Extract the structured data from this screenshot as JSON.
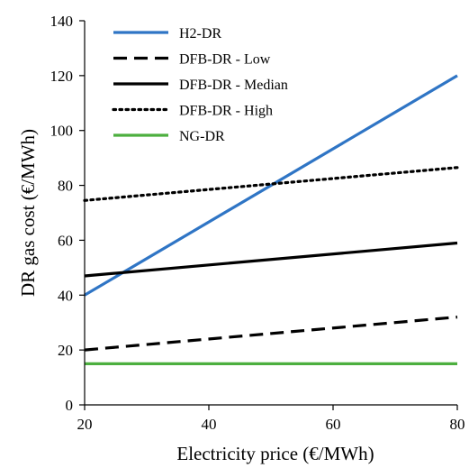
{
  "chart_data": {
    "type": "line",
    "title": "",
    "xlabel": "Electricity price (€/MWh)",
    "ylabel": "DR gas cost (€/MWh)",
    "xlim": [
      20,
      80
    ],
    "ylim": [
      0,
      140
    ],
    "x_ticks": [
      20,
      40,
      60,
      80
    ],
    "y_ticks": [
      0,
      20,
      40,
      60,
      80,
      100,
      120,
      140
    ],
    "grid": false,
    "legend_position": "top-left",
    "x": [
      20,
      80
    ],
    "series": [
      {
        "name": "H2-DR",
        "values": [
          40,
          120
        ],
        "color": "#2F75C5",
        "style": "solid"
      },
      {
        "name": "DFB-DR - Low",
        "values": [
          20,
          32
        ],
        "color": "#000000",
        "style": "dashed"
      },
      {
        "name": "DFB-DR - Median",
        "values": [
          47,
          59
        ],
        "color": "#000000",
        "style": "solid"
      },
      {
        "name": "DFB-DR - High",
        "values": [
          74.5,
          86.5
        ],
        "color": "#000000",
        "style": "dotted"
      },
      {
        "name": "NG-DR",
        "values": [
          15,
          15
        ],
        "color": "#4CAF3F",
        "style": "solid"
      }
    ]
  }
}
